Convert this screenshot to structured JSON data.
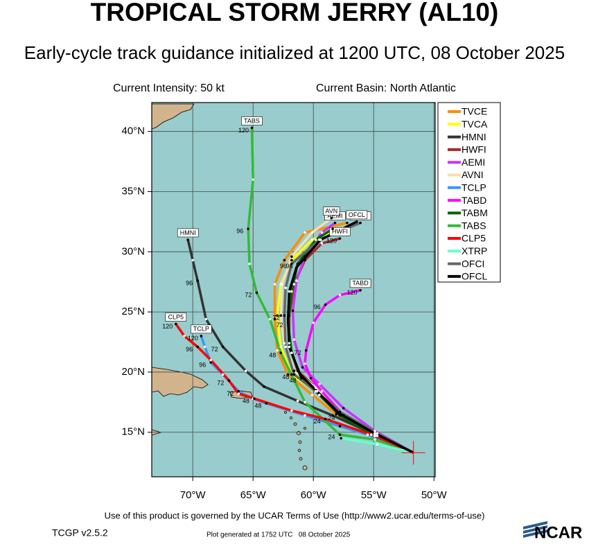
{
  "header": {
    "title": "TROPICAL STORM JERRY (AL10)",
    "subtitle": "Early-cycle track guidance initialized at 1200 UTC, 08 October 2025"
  },
  "info": {
    "intensity": "Current Intensity: 50 kt",
    "basin": "Current Basin: North Atlantic"
  },
  "map": {
    "type": "track",
    "lonlim": [
      -73.4,
      -49.9
    ],
    "latlim": [
      11.3,
      42.4
    ],
    "grid": true,
    "lonticks": [
      {
        "value": -70,
        "label": "70°W"
      },
      {
        "value": -65,
        "label": "65°W"
      },
      {
        "value": -60,
        "label": "60°W"
      },
      {
        "value": -55,
        "label": "55°W"
      },
      {
        "value": -50,
        "label": "50°W"
      }
    ],
    "latticks": [
      {
        "value": 15,
        "label": "15°N"
      },
      {
        "value": 20,
        "label": "20°N"
      },
      {
        "value": 25,
        "label": "25°N"
      },
      {
        "value": 30,
        "label": "30°N"
      },
      {
        "value": 35,
        "label": "35°N"
      },
      {
        "value": 40,
        "label": "40°N"
      }
    ],
    "initial": {
      "lon": -51.7,
      "lat": 13.3,
      "color": "#ff0000"
    },
    "legend": "right",
    "tracks": [
      {
        "name": "TVCE",
        "color": "#ff8c00",
        "lon": [
          -51.7,
          -54.9,
          -58.1,
          -60.1,
          -62.1,
          -63.0,
          -63.2,
          -63.2,
          -62.4,
          -60.7,
          -57.2
        ],
        "lat": [
          13.3,
          14.8,
          16.5,
          18.1,
          19.8,
          21.8,
          24.4,
          27.3,
          29.3,
          31.6,
          32.4
        ]
      },
      {
        "name": "TVCA",
        "color": "#ffff00",
        "lon": [
          -51.7,
          -54.9,
          -57.9,
          -59.8,
          -61.8,
          -62.7,
          -63.0,
          -62.7,
          -61.8,
          -60.1,
          -57.0
        ],
        "lat": [
          13.3,
          14.7,
          16.6,
          18.4,
          19.8,
          22.1,
          24.7,
          27.3,
          29.3,
          31.0,
          32.2
        ]
      },
      {
        "name": "HMNI",
        "color": "#333333",
        "box": "HMNI",
        "hours": [
          null,
          null,
          null,
          null,
          null,
          null,
          72,
          null,
          96,
          null,
          null
        ],
        "lon": [
          -51.7,
          -54.9,
          -58.4,
          -61.3,
          -64.1,
          -65.6,
          -67.5,
          -68.9,
          -69.6,
          -70.0,
          -70.4
        ],
        "lat": [
          13.3,
          14.8,
          16.4,
          17.6,
          18.8,
          20.1,
          22.1,
          24.4,
          27.6,
          29.3,
          31.0
        ]
      },
      {
        "name": "HWFI",
        "color": "#a52a2a",
        "box": "HWFI",
        "hours": [
          null,
          null,
          null,
          null,
          null,
          null,
          null,
          null,
          null,
          null,
          120
        ],
        "lon": [
          -51.7,
          -55.2,
          -57.8,
          -59.8,
          -61.3,
          -62.0,
          -62.0,
          -61.6,
          -60.7,
          -59.3,
          -57.8
        ],
        "lat": [
          13.3,
          14.8,
          16.5,
          18.7,
          20.1,
          22.4,
          24.7,
          27.3,
          29.3,
          30.7,
          31.1
        ]
      },
      {
        "name": "AEMI",
        "color": "#cc33ff",
        "box": "AEMI",
        "lon": [
          -51.7,
          -54.9,
          -57.5,
          -59.5,
          -60.9,
          -61.6,
          -61.7,
          -61.4,
          -60.7,
          -59.3,
          -58.2
        ],
        "lat": [
          13.3,
          15.1,
          17.0,
          19.0,
          20.4,
          22.7,
          25.1,
          27.6,
          29.6,
          31.6,
          32.4
        ]
      },
      {
        "name": "AVNI",
        "color": "#f5deb3",
        "box": "AVN",
        "lon": [
          -51.7,
          -54.9,
          -58.1,
          -59.8,
          -61.6,
          -62.4,
          -62.7,
          -62.6,
          -61.8,
          -60.1,
          -58.5
        ],
        "lat": [
          13.3,
          14.9,
          16.7,
          18.7,
          20.1,
          22.4,
          24.7,
          27.3,
          29.6,
          31.6,
          32.8
        ]
      },
      {
        "name": "TCLP",
        "color": "#3399ff",
        "box": "TCLP",
        "hours": [
          null,
          null,
          null,
          null,
          48,
          null,
          72,
          null,
          96,
          null,
          120
        ],
        "lon": [
          -51.7,
          -55.5,
          -57.8,
          -60.7,
          -63.9,
          -65.0,
          -66.2,
          -67.5,
          -68.5,
          -69.0,
          -69.3
        ],
        "lat": [
          13.3,
          14.8,
          15.5,
          16.4,
          17.4,
          17.8,
          18.4,
          19.8,
          20.8,
          22.1,
          23.0
        ]
      },
      {
        "name": "TABD",
        "color": "#ff00ff",
        "box": "TABD",
        "hours": [
          null,
          null,
          null,
          null,
          null,
          null,
          72,
          null,
          96,
          null,
          120
        ],
        "lon": [
          -51.7,
          -54.7,
          -57.5,
          -59.3,
          -60.2,
          -60.7,
          -60.6,
          -60.0,
          -59.0,
          -57.8,
          -56.1
        ],
        "lat": [
          13.3,
          14.7,
          16.4,
          18.4,
          19.5,
          20.7,
          21.8,
          24.1,
          25.6,
          26.4,
          26.8
        ]
      },
      {
        "name": "TABM",
        "color": "#006400",
        "hours": [
          null,
          null,
          24,
          null,
          48,
          null,
          72,
          null,
          96,
          null,
          null
        ],
        "lon": [
          -51.7,
          -54.9,
          -57.8,
          -59.5,
          -61.0,
          -61.8,
          -62.1,
          -61.8,
          -61.3,
          -59.8,
          -58.4
        ],
        "lat": [
          13.3,
          14.7,
          16.4,
          18.1,
          19.5,
          21.6,
          24.1,
          26.7,
          29.0,
          31.0,
          31.9
        ]
      },
      {
        "name": "TABS",
        "color": "#33bb33",
        "box": "TABS",
        "hours": [
          null,
          null,
          24,
          null,
          48,
          null,
          72,
          null,
          96,
          null,
          120
        ],
        "lon": [
          -51.7,
          -54.9,
          -57.8,
          -60.7,
          -62.7,
          -63.6,
          -64.7,
          -65.3,
          -65.4,
          -65.0,
          -65.1
        ],
        "lat": [
          13.3,
          14.4,
          14.8,
          17.5,
          21.6,
          24.4,
          26.6,
          29.0,
          31.9,
          36.0,
          40.3
        ]
      },
      {
        "name": "CLP5",
        "color": "#ff0000",
        "box": "CLP5",
        "hours": [
          null,
          null,
          24,
          null,
          48,
          null,
          72,
          null,
          96,
          null,
          120
        ],
        "lon": [
          -51.7,
          -54.9,
          -59.0,
          -61.8,
          -64.9,
          -66.2,
          -67.0,
          -68.5,
          -69.6,
          -70.7,
          -71.4
        ],
        "lat": [
          13.3,
          14.7,
          16.1,
          16.8,
          17.8,
          18.2,
          19.3,
          21.0,
          22.1,
          23.0,
          24.0
        ]
      },
      {
        "name": "XTRP",
        "color": "#66ffcc",
        "lon": [
          -51.7,
          -54.7,
          -57.7
        ],
        "lat": [
          13.3,
          14.0,
          14.5
        ]
      },
      {
        "name": "OFCI",
        "color": "#666666",
        "box": "OFCI",
        "hours": [
          null,
          null,
          null,
          null,
          48,
          null,
          72,
          null,
          96,
          null,
          null
        ],
        "lon": [
          -51.7,
          -54.7,
          -57.8,
          -59.8,
          -61.6,
          -62.3,
          -62.4,
          -62.3,
          -61.8,
          -59.5,
          -56.1
        ],
        "lat": [
          13.3,
          14.9,
          16.7,
          18.4,
          19.8,
          22.1,
          24.7,
          27.0,
          29.0,
          31.0,
          32.4
        ]
      },
      {
        "name": "OFCL",
        "color": "#000000",
        "box": "OFCL",
        "lon": [
          -51.7,
          -54.9,
          -57.9,
          -59.7,
          -61.1,
          -62.0,
          -62.1,
          -62.0,
          -61.4,
          -59.4,
          -56.4
        ],
        "lat": [
          13.3,
          14.9,
          16.6,
          18.4,
          19.8,
          22.1,
          24.4,
          26.7,
          28.7,
          31.0,
          32.5
        ]
      }
    ]
  },
  "footer": {
    "terms": "Use of this product is governed by the UCAR Terms of Use (http://www2.ucar.edu/terms-of-use)",
    "version": "TCGP v2.5.2",
    "generated": "Plot generated at 1752 UTC   08 October 2025",
    "logo": "NCAR"
  }
}
